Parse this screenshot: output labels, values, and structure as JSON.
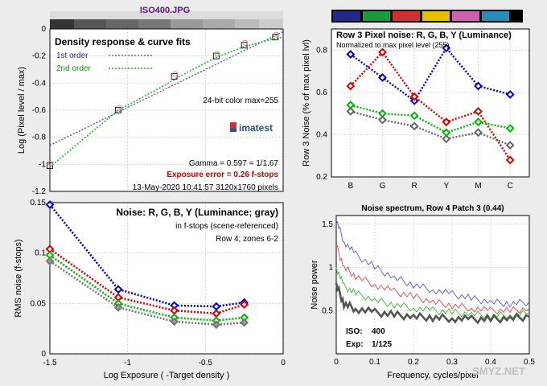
{
  "file_title": "ISO400.JPG",
  "color_palette": [
    "#1f2a8a",
    "#1a9a3a",
    "#d03030",
    "#e6c000",
    "#d060b0",
    "#2a8ab8",
    "#000000"
  ],
  "chart_data": [
    {
      "type": "line",
      "title": "Density response & curve fits",
      "xlabel": "",
      "ylabel": "Log (Pixel level / max)",
      "xlim": [
        -1.5,
        0
      ],
      "ylim": [
        -1.2,
        0
      ],
      "x_ticks": [
        "-1.5",
        "-1",
        "-0.5",
        "0"
      ],
      "y_ticks": [
        "0",
        "-0.2",
        "-0.4",
        "-0.6",
        "-0.8",
        "-1",
        "-1.2"
      ],
      "legend": [
        "1st order",
        "2nd order"
      ],
      "fit_1st": {
        "x": [
          -1.5,
          0
        ],
        "y": [
          -0.86,
          -0.02
        ]
      },
      "fit_2nd": {
        "x": [
          -1.5,
          -1.25,
          -1.06,
          -0.8,
          -0.6,
          -0.43,
          -0.25,
          -0.05,
          0
        ],
        "y": [
          -1.02,
          -0.78,
          -0.6,
          -0.44,
          -0.31,
          -0.21,
          -0.13,
          -0.07,
          -0.06
        ]
      },
      "points": {
        "x": [
          -1.5,
          -1.06,
          -0.7,
          -0.43,
          -0.25,
          -0.05
        ],
        "y": [
          -1.01,
          -0.6,
          -0.35,
          -0.2,
          -0.12,
          -0.06
        ]
      },
      "annotations": {
        "bitdepth": "24-bit color  max=255",
        "gamma": "Gamma = 0.597 = 1/1.67",
        "exposure_error": "Exposure error = 0.26 f-stops",
        "date": "13-May-2020 10:41:57   3120x1760 pixels",
        "logo": "imatest"
      }
    },
    {
      "type": "line",
      "title": "Row 3 Pixel noise: R, G, B, Y (Luminance)",
      "subtitle": "Normalized to max pixel level (255)",
      "xlabel": "",
      "ylabel": "Row 3 Noise (% of max pixel lvl)",
      "categories": [
        "B",
        "G",
        "R",
        "Y",
        "M",
        "C"
      ],
      "ylim": [
        0.2,
        0.9
      ],
      "y_ticks": [
        "0.2",
        "0.4",
        "0.6",
        "0.8"
      ],
      "series": [
        {
          "name": "Y",
          "color": "#0000cc",
          "values": [
            0.78,
            0.67,
            0.56,
            0.81,
            0.63,
            0.59
          ]
        },
        {
          "name": "R",
          "color": "#dd0000",
          "values": [
            0.63,
            0.79,
            0.58,
            0.46,
            0.51,
            0.28
          ]
        },
        {
          "name": "G",
          "color": "#00bb00",
          "values": [
            0.54,
            0.5,
            0.49,
            0.41,
            0.46,
            0.43
          ]
        },
        {
          "name": "gray",
          "color": "#666666",
          "values": [
            0.51,
            0.47,
            0.44,
            0.38,
            0.41,
            0.35
          ]
        }
      ]
    },
    {
      "type": "line",
      "title": "Noise: R, G, B, Y (Luminance; gray)",
      "subtitle1": "in f-stops (scene-referenced)",
      "subtitle2": "Row 4; zones 6-2",
      "xlabel": "Log Exposure ( -Target density )",
      "ylabel": "RMS noise (f-stops)",
      "xlim": [
        -1.5,
        0
      ],
      "ylim": [
        0,
        0.15
      ],
      "x_ticks": [
        "-1.5",
        "-1",
        "-0.5",
        "0"
      ],
      "y_ticks": [
        "0.15",
        "0.1",
        "0.05",
        "0"
      ],
      "x": [
        -1.5,
        -1.06,
        -0.7,
        -0.43,
        -0.25
      ],
      "series": [
        {
          "name": "Y",
          "color": "#0000cc",
          "values": [
            0.148,
            0.064,
            0.048,
            0.047,
            0.051
          ]
        },
        {
          "name": "R",
          "color": "#dd0000",
          "values": [
            0.104,
            0.056,
            0.043,
            0.04,
            0.049
          ]
        },
        {
          "name": "G",
          "color": "#00bb00",
          "values": [
            0.098,
            0.05,
            0.036,
            0.033,
            0.036
          ]
        },
        {
          "name": "gray",
          "color": "#777777",
          "values": [
            0.092,
            0.046,
            0.032,
            0.029,
            0.031
          ]
        }
      ]
    },
    {
      "type": "line",
      "title": "Noise spectrum, Row 4 Patch 3 (0.44)",
      "xlabel": "Frequency, cycles/pixel",
      "ylabel": "Noise power",
      "xlim": [
        0,
        0.5
      ],
      "ylim": [
        0,
        1.6
      ],
      "x_ticks": [
        "0",
        "0.1",
        "0.2",
        "0.3",
        "0.4",
        "0.5"
      ],
      "y_ticks": [
        "1.5",
        "1",
        "0.5"
      ],
      "x": [
        0,
        0.02,
        0.05,
        0.1,
        0.15,
        0.2,
        0.25,
        0.3,
        0.35,
        0.4,
        0.45,
        0.5
      ],
      "series": [
        {
          "name": "B",
          "color": "#5555ee",
          "values": [
            1.55,
            1.3,
            1.15,
            1.0,
            0.88,
            0.8,
            0.74,
            0.69,
            0.64,
            0.6,
            0.58,
            0.6
          ]
        },
        {
          "name": "R",
          "color": "#ee4444",
          "values": [
            1.25,
            1.0,
            0.9,
            0.8,
            0.72,
            0.66,
            0.6,
            0.56,
            0.53,
            0.5,
            0.5,
            0.52
          ]
        },
        {
          "name": "G",
          "color": "#33bb33",
          "values": [
            1.0,
            0.78,
            0.7,
            0.62,
            0.57,
            0.53,
            0.5,
            0.48,
            0.46,
            0.44,
            0.45,
            0.47
          ]
        },
        {
          "name": "Y",
          "color": "#555555",
          "values": [
            0.8,
            0.58,
            0.52,
            0.48,
            0.45,
            0.43,
            0.42,
            0.41,
            0.4,
            0.4,
            0.41,
            0.43
          ]
        }
      ],
      "annotations": {
        "iso_label": "ISO:",
        "iso_value": "400",
        "exp_label": "Exp:",
        "exp_value": "1/125"
      }
    }
  ],
  "watermark": "SMYZ.NET"
}
